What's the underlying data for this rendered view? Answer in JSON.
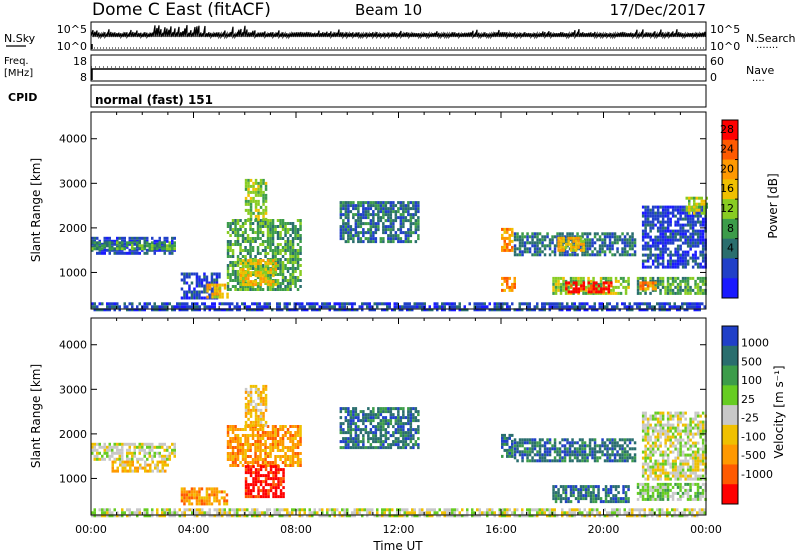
{
  "header": {
    "title": "Dome C East (fitACF)",
    "beam": "Beam 10",
    "date": "17/Dec/2017"
  },
  "nsky_panel": {
    "left_label": "N.Sky",
    "left_ticks": [
      "10^5",
      "10^0"
    ],
    "right_ticks": [
      "10^5",
      "10^0"
    ],
    "right_label": "N.Search",
    "right_marker": "·······"
  },
  "freq_panel": {
    "left_label_1": "Freq.",
    "left_label_2": "[MHz]",
    "left_ticks": [
      "18",
      "8"
    ],
    "right_ticks": [
      "60",
      "0"
    ],
    "right_label": "Nave",
    "right_marker": "····"
  },
  "cpid_panel": {
    "label": "CPID",
    "mode": "normal (fast) 151"
  },
  "colors": {
    "power": [
      "#1a1aff",
      "#2040c8",
      "#2a6e6e",
      "#3c9c4a",
      "#88cc22",
      "#f0c000",
      "#ff9900",
      "#ff5a00",
      "#ff0000"
    ],
    "velocity_pos": [
      "#2040c8",
      "#2a6e6e",
      "#3c9c4a",
      "#66cc22"
    ],
    "velocity_mid": "#c8c8c8",
    "velocity_neg": [
      "#f0c000",
      "#ff9900",
      "#ff5a00",
      "#ff0000"
    ]
  },
  "chart_data": [
    {
      "type": "heatmap",
      "name": "power",
      "ylabel": "Slant Range [km]",
      "yticks": [
        1000,
        2000,
        3000,
        4000
      ],
      "ylim": [
        180,
        4600
      ],
      "xlim": [
        0,
        24
      ],
      "xtick_labels": [
        "00:00",
        "04:00",
        "08:00",
        "12:00",
        "16:00",
        "20:00",
        "00:00"
      ],
      "colorbar": {
        "label": "Power [dB]",
        "tick_labels": [
          "4",
          "8",
          "12",
          "16",
          "20",
          "24",
          "28"
        ]
      },
      "regions": [
        {
          "t0": 0.0,
          "t1": 3.3,
          "r0": 1400,
          "r1": 1800,
          "level": 1
        },
        {
          "t0": 0.0,
          "t1": 3.3,
          "r0": 1550,
          "r1": 1700,
          "level": 3
        },
        {
          "t0": 0.0,
          "t1": 24.0,
          "r0": 180,
          "r1": 330,
          "level": 1
        },
        {
          "t0": 3.5,
          "t1": 5.0,
          "r0": 400,
          "r1": 1000,
          "level": 1
        },
        {
          "t0": 4.5,
          "t1": 5.3,
          "r0": 450,
          "r1": 750,
          "level": 5
        },
        {
          "t0": 5.3,
          "t1": 8.2,
          "r0": 600,
          "r1": 2200,
          "level": 3
        },
        {
          "t0": 5.8,
          "t1": 7.2,
          "r0": 700,
          "r1": 1300,
          "level": 5
        },
        {
          "t0": 6.0,
          "t1": 6.8,
          "r0": 2200,
          "r1": 3100,
          "level": 4
        },
        {
          "t0": 9.7,
          "t1": 12.8,
          "r0": 1700,
          "r1": 2600,
          "level": 2
        },
        {
          "t0": 16.0,
          "t1": 16.4,
          "r0": 1500,
          "r1": 2000,
          "level": 6
        },
        {
          "t0": 16.0,
          "t1": 16.5,
          "r0": 600,
          "r1": 900,
          "level": 6
        },
        {
          "t0": 16.5,
          "t1": 21.2,
          "r0": 1400,
          "r1": 1900,
          "level": 2
        },
        {
          "t0": 18.2,
          "t1": 19.2,
          "r0": 1500,
          "r1": 1800,
          "level": 5
        },
        {
          "t0": 18.0,
          "t1": 21.0,
          "r0": 500,
          "r1": 900,
          "level": 4
        },
        {
          "t0": 18.5,
          "t1": 20.3,
          "r0": 550,
          "r1": 800,
          "level": 8
        },
        {
          "t0": 21.3,
          "t1": 24.0,
          "r0": 500,
          "r1": 900,
          "level": 3
        },
        {
          "t0": 21.4,
          "t1": 22.0,
          "r0": 600,
          "r1": 800,
          "level": 6
        },
        {
          "t0": 21.5,
          "t1": 24.0,
          "r0": 1100,
          "r1": 2500,
          "level": 1
        },
        {
          "t0": 23.2,
          "t1": 24.0,
          "r0": 2300,
          "r1": 2700,
          "level": 4
        }
      ]
    },
    {
      "type": "heatmap",
      "name": "velocity",
      "ylabel": "Slant Range [km]",
      "yticks": [
        1000,
        2000,
        3000,
        4000
      ],
      "ylim": [
        180,
        4600
      ],
      "xlim": [
        0,
        24
      ],
      "xtick_labels": [
        "00:00",
        "04:00",
        "08:00",
        "12:00",
        "16:00",
        "20:00",
        "00:00"
      ],
      "xlabel": "Time UT",
      "colorbar": {
        "label": "Velocity [m s⁻¹]",
        "tick_labels": [
          "1000",
          "500",
          "100",
          "25",
          "-25",
          "-100",
          "-500",
          "-1000"
        ]
      },
      "regions": [
        {
          "t0": 0.0,
          "t1": 3.3,
          "r0": 1400,
          "r1": 1800,
          "level": 4
        },
        {
          "t0": 0.8,
          "t1": 3.0,
          "r0": 1150,
          "r1": 1400,
          "level": 5
        },
        {
          "t0": 0.0,
          "t1": 24.0,
          "r0": 180,
          "r1": 330,
          "level": 4
        },
        {
          "t0": 3.5,
          "t1": 5.3,
          "r0": 450,
          "r1": 800,
          "level": 6
        },
        {
          "t0": 5.3,
          "t1": 8.2,
          "r0": 1300,
          "r1": 2200,
          "level": 6
        },
        {
          "t0": 6.0,
          "t1": 7.5,
          "r0": 600,
          "r1": 1300,
          "level": 8
        },
        {
          "t0": 6.0,
          "t1": 6.8,
          "r0": 2200,
          "r1": 3100,
          "level": 5
        },
        {
          "t0": 9.7,
          "t1": 12.8,
          "r0": 1700,
          "r1": 2600,
          "level": 1
        },
        {
          "t0": 16.0,
          "t1": 16.4,
          "r0": 1500,
          "r1": 2000,
          "level": 1
        },
        {
          "t0": 16.5,
          "t1": 21.2,
          "r0": 1400,
          "r1": 1900,
          "level": 1
        },
        {
          "t0": 18.0,
          "t1": 21.0,
          "r0": 450,
          "r1": 850,
          "level": 1
        },
        {
          "t0": 21.3,
          "t1": 24.0,
          "r0": 500,
          "r1": 900,
          "level": 3
        },
        {
          "t0": 21.5,
          "t1": 24.0,
          "r0": 1000,
          "r1": 2500,
          "level": 4
        }
      ]
    }
  ]
}
